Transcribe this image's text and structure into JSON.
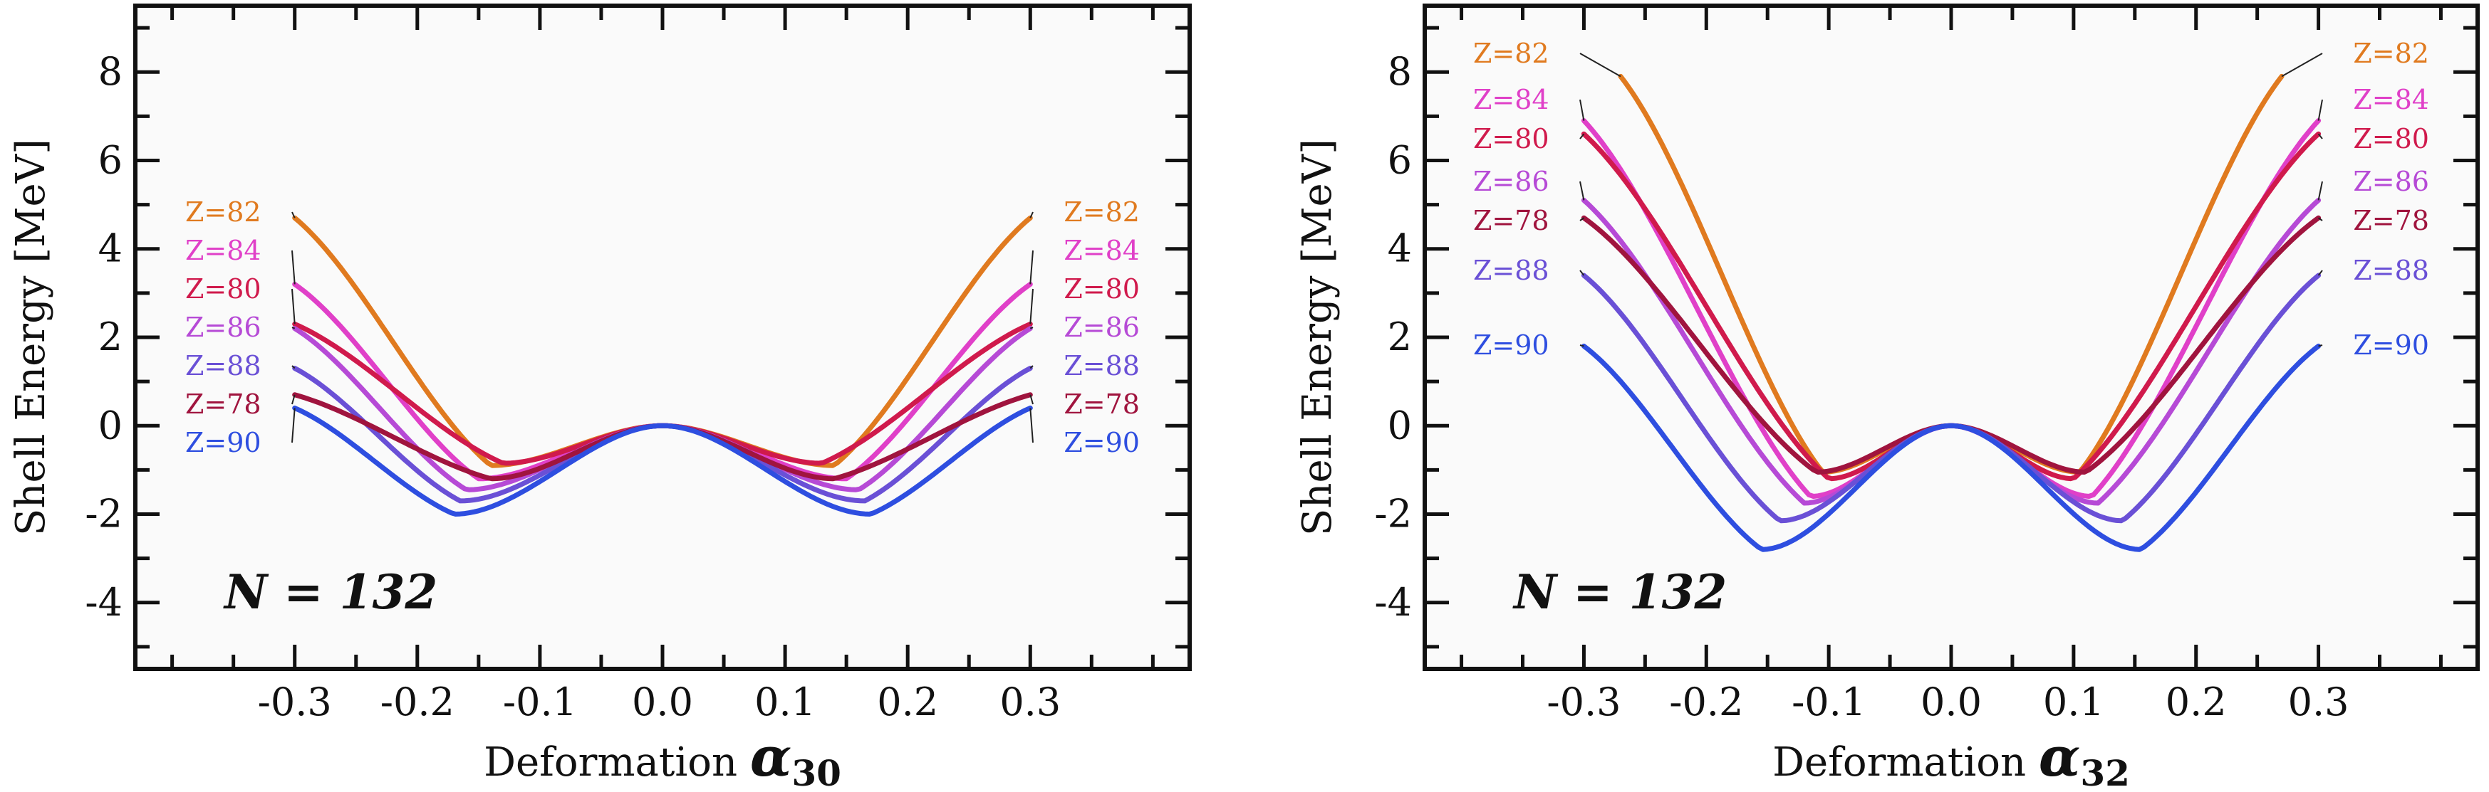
{
  "chart_data": [
    {
      "type": "line",
      "ylabel": "Shell Energy [MeV]",
      "xlabel": {
        "prefix": "Deformation",
        "symbol": "α",
        "subscript": "30"
      },
      "annotation": "N = 132",
      "xticks": [
        "-0.3",
        "-0.2",
        "-0.1",
        "0.0",
        "0.1",
        "0.2",
        "0.3"
      ],
      "xtick_values": [
        -0.3,
        -0.2,
        -0.1,
        0.0,
        0.1,
        0.2,
        0.3
      ],
      "yticks": [
        "8",
        "6",
        "4",
        "2",
        "0",
        "-2",
        "-4"
      ],
      "ytick_values": [
        8,
        6,
        4,
        2,
        0,
        -2,
        -4
      ],
      "xlim": [
        -0.43,
        0.43
      ],
      "ylim": [
        -5.5,
        9.5
      ],
      "curve_x_range": [
        -0.3,
        0.3
      ],
      "series": [
        {
          "name": "Z=82",
          "color": "#e07a1f",
          "end_value": 4.7,
          "min_x": 0.14,
          "min_value": -0.9
        },
        {
          "name": "Z=84",
          "color": "#e040c8",
          "end_value": 3.2,
          "min_x": 0.15,
          "min_value": -1.2
        },
        {
          "name": "Z=80",
          "color": "#d01a4c",
          "end_value": 2.3,
          "min_x": 0.13,
          "min_value": -0.85
        },
        {
          "name": "Z=86",
          "color": "#b64ad6",
          "end_value": 2.2,
          "min_x": 0.16,
          "min_value": -1.45
        },
        {
          "name": "Z=88",
          "color": "#6a50d6",
          "end_value": 1.3,
          "min_x": 0.165,
          "min_value": -1.7
        },
        {
          "name": "Z=78",
          "color": "#a0143e",
          "end_value": 0.7,
          "min_x": 0.14,
          "min_value": -1.2
        },
        {
          "name": "Z=90",
          "color": "#2e4ee0",
          "end_value": 0.4,
          "min_x": 0.17,
          "min_value": -2.0
        }
      ]
    },
    {
      "type": "line",
      "ylabel": "Shell Energy [MeV]",
      "xlabel": {
        "prefix": "Deformation",
        "symbol": "α",
        "subscript": "32"
      },
      "annotation": "N = 132",
      "xticks": [
        "-0.3",
        "-0.2",
        "-0.1",
        "0.0",
        "0.1",
        "0.2",
        "0.3"
      ],
      "xtick_values": [
        -0.3,
        -0.2,
        -0.1,
        0.0,
        0.1,
        0.2,
        0.3
      ],
      "yticks": [
        "8",
        "6",
        "4",
        "2",
        "0",
        "-2",
        "-4"
      ],
      "ytick_values": [
        8,
        6,
        4,
        2,
        0,
        -2,
        -4
      ],
      "xlim": [
        -0.43,
        0.43
      ],
      "ylim": [
        -5.5,
        9.5
      ],
      "series": [
        {
          "name": "Z=82",
          "color": "#e07a1f",
          "end_x": 0.27,
          "end_value": 7.9,
          "min_x": 0.105,
          "min_value": -1.05
        },
        {
          "name": "Z=84",
          "color": "#e040c8",
          "end_x": 0.3,
          "end_value": 6.9,
          "min_x": 0.115,
          "min_value": -1.6
        },
        {
          "name": "Z=80",
          "color": "#d01a4c",
          "end_x": 0.3,
          "end_value": 6.6,
          "min_x": 0.1,
          "min_value": -1.2
        },
        {
          "name": "Z=86",
          "color": "#b64ad6",
          "end_x": 0.3,
          "end_value": 5.1,
          "min_x": 0.12,
          "min_value": -1.75
        },
        {
          "name": "Z=78",
          "color": "#a0143e",
          "end_x": 0.3,
          "end_value": 4.7,
          "min_x": 0.11,
          "min_value": -1.05
        },
        {
          "name": "Z=88",
          "color": "#6a50d6",
          "end_x": 0.3,
          "end_value": 3.4,
          "min_x": 0.14,
          "min_value": -2.15
        },
        {
          "name": "Z=90",
          "color": "#2e4ee0",
          "end_x": 0.3,
          "end_value": 1.8,
          "min_x": 0.155,
          "min_value": -2.8
        }
      ]
    }
  ]
}
